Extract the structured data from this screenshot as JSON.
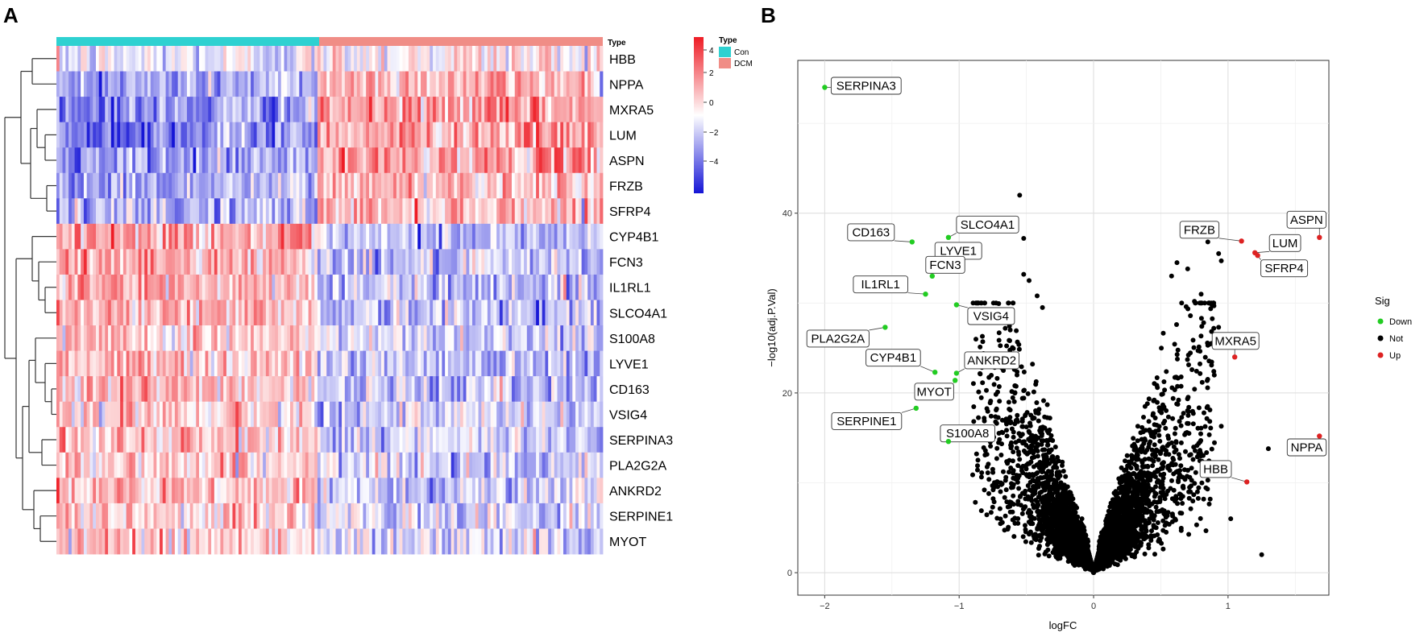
{
  "panels": {
    "a_label": "A",
    "b_label": "B"
  },
  "heatmap": {
    "type_row_label": "Type",
    "genes": [
      "HBB",
      "NPPA",
      "MXRA5",
      "LUM",
      "ASPN",
      "FRZB",
      "SFRP4",
      "CYP4B1",
      "FCN3",
      "IL1RL1",
      "SLCO4A1",
      "S100A8",
      "LYVE1",
      "CD163",
      "VSIG4",
      "SERPINA3",
      "PLA2G2A",
      "ANKRD2",
      "SERPINE1",
      "MYOT"
    ],
    "mean_z_con": [
      -0.3,
      -1.2,
      -1.5,
      -1.6,
      -1.4,
      -1.1,
      -1.1,
      1.3,
      1.2,
      1.1,
      1.1,
      0.7,
      0.9,
      1.0,
      0.8,
      0.8,
      0.7,
      0.8,
      0.7,
      0.8
    ],
    "mean_z_dcm": [
      0.3,
      1.1,
      1.3,
      1.3,
      1.3,
      1.0,
      1.0,
      -1.0,
      -0.9,
      -0.8,
      -0.8,
      -0.5,
      -0.7,
      -0.8,
      -0.6,
      -0.6,
      -0.5,
      -0.6,
      -0.5,
      -0.5
    ],
    "con_fraction": 0.48,
    "colors": {
      "high": "#ee1c25",
      "mid": "#ffffff",
      "low": "#1515d6",
      "con": "#2ed1d1",
      "dcm": "#f08d86"
    },
    "color_scale": {
      "ticks": [
        "4",
        "2",
        "0",
        "−2",
        "−4"
      ]
    },
    "type_legend": {
      "title": "Type",
      "items": [
        "Con",
        "DCM"
      ]
    }
  },
  "chart_data": {
    "type": "scatter",
    "title": "",
    "xlabel": "logFC",
    "ylabel": "−log10(adj.P.Val)",
    "xlim": [
      -2.2,
      1.75
    ],
    "ylim": [
      -2.5,
      57
    ],
    "x_ticks": [
      -2,
      -1,
      0,
      1
    ],
    "y_ticks": [
      0,
      20,
      40
    ],
    "legend": {
      "title": "Sig",
      "position": "right",
      "items": [
        {
          "name": "Down",
          "color": "#22cc22"
        },
        {
          "name": "Not",
          "color": "#000000"
        },
        {
          "name": "Up",
          "color": "#dd2222"
        }
      ]
    },
    "labeled_points": [
      {
        "gene": "SERPINA3",
        "x": -2.0,
        "y": 54.0,
        "sig": "Down"
      },
      {
        "gene": "CD163",
        "x": -1.35,
        "y": 36.8,
        "sig": "Down"
      },
      {
        "gene": "SLCO4A1",
        "x": -1.08,
        "y": 37.3,
        "sig": "Down"
      },
      {
        "gene": "LYVE1",
        "x": -1.12,
        "y": 34.2,
        "sig": "Down"
      },
      {
        "gene": "FCN3",
        "x": -1.2,
        "y": 33.0,
        "sig": "Down"
      },
      {
        "gene": "IL1RL1",
        "x": -1.25,
        "y": 31.0,
        "sig": "Down"
      },
      {
        "gene": "VSIG4",
        "x": -1.02,
        "y": 29.8,
        "sig": "Down"
      },
      {
        "gene": "PLA2G2A",
        "x": -1.55,
        "y": 27.3,
        "sig": "Down"
      },
      {
        "gene": "CYP4B1",
        "x": -1.18,
        "y": 22.3,
        "sig": "Down"
      },
      {
        "gene": "ANKRD2",
        "x": -1.02,
        "y": 22.2,
        "sig": "Down"
      },
      {
        "gene": "MYOT",
        "x": -1.03,
        "y": 21.4,
        "sig": "Down"
      },
      {
        "gene": "SERPINE1",
        "x": -1.32,
        "y": 18.3,
        "sig": "Down"
      },
      {
        "gene": "S100A8",
        "x": -1.08,
        "y": 14.6,
        "sig": "Down"
      },
      {
        "gene": "FRZB",
        "x": 1.1,
        "y": 36.9,
        "sig": "Up"
      },
      {
        "gene": "LUM",
        "x": 1.2,
        "y": 35.6,
        "sig": "Up"
      },
      {
        "gene": "SFRP4",
        "x": 1.22,
        "y": 35.3,
        "sig": "Up"
      },
      {
        "gene": "ASPN",
        "x": 1.68,
        "y": 37.3,
        "sig": "Up"
      },
      {
        "gene": "MXRA5",
        "x": 1.05,
        "y": 24.0,
        "sig": "Up"
      },
      {
        "gene": "NPPA",
        "x": 1.68,
        "y": 15.2,
        "sig": "Up"
      },
      {
        "gene": "HBB",
        "x": 1.14,
        "y": 10.1,
        "sig": "Up"
      }
    ],
    "background_points": {
      "series": "Not",
      "approx_count": 4200,
      "note_shape": "volcano: y grows with |logFC|",
      "outliers": [
        [
          -0.55,
          42.0
        ],
        [
          -0.52,
          37.2
        ],
        [
          -0.52,
          33.2
        ],
        [
          -0.48,
          32.5
        ],
        [
          -0.42,
          30.8
        ],
        [
          -0.38,
          29.5
        ],
        [
          -0.6,
          30.0
        ],
        [
          0.85,
          36.8
        ],
        [
          0.78,
          37.5
        ],
        [
          0.9,
          38.2
        ],
        [
          0.62,
          34.5
        ],
        [
          0.7,
          33.8
        ],
        [
          0.93,
          35.5
        ],
        [
          0.95,
          34.7
        ],
        [
          0.58,
          33.0
        ],
        [
          0.8,
          31.0
        ],
        [
          0.75,
          30.2
        ],
        [
          0.93,
          27.3
        ],
        [
          0.85,
          25.3
        ],
        [
          1.3,
          13.8
        ],
        [
          0.85,
          10.3
        ],
        [
          0.95,
          16.3
        ],
        [
          -0.75,
          11.5
        ],
        [
          -0.6,
          9.5
        ],
        [
          -0.45,
          13.5
        ],
        [
          1.25,
          2.0
        ],
        [
          1.02,
          6.0
        ],
        [
          0.74,
          12.6
        ],
        [
          -0.62,
          27.0
        ]
      ]
    }
  }
}
